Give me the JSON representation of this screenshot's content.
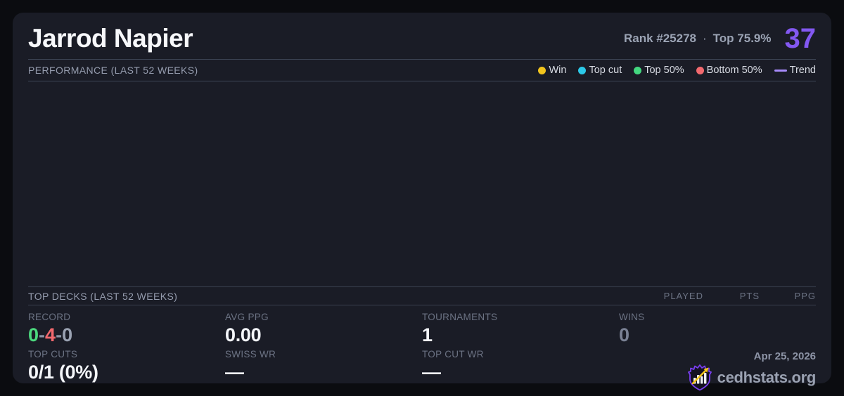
{
  "header": {
    "player_name": "Jarrod Napier",
    "rank": "Rank #25278",
    "separator": "·",
    "percentile": "Top 75.9%",
    "score": "37"
  },
  "colors": {
    "accent_purple": "#8358f1",
    "win_yellow": "#f2c41d",
    "top_cut_cyan": "#2cc9e8",
    "top50_green": "#43d77f",
    "bottom50_red": "#f2696e",
    "trend_purple": "#a78bfa",
    "logo_border_purple": "#7a3ff2",
    "logo_arrow_gold": "#f5c71b"
  },
  "performance": {
    "title": "PERFORMANCE (LAST 52 WEEKS)",
    "legend": [
      {
        "label": "Win",
        "swatch": "dot",
        "color": "#f2c41d"
      },
      {
        "label": "Top cut",
        "swatch": "dot",
        "color": "#2cc9e8"
      },
      {
        "label": "Top 50%",
        "swatch": "dot",
        "color": "#43d77f"
      },
      {
        "label": "Bottom 50%",
        "swatch": "dot",
        "color": "#f2696e"
      },
      {
        "label": "Trend",
        "swatch": "line",
        "color": "#a78bfa"
      }
    ],
    "chart_points": []
  },
  "top_decks": {
    "title": "TOP DECKS (LAST 52 WEEKS)",
    "columns": [
      "PLAYED",
      "PTS",
      "PPG"
    ],
    "rows": []
  },
  "stats": {
    "record": {
      "label": "RECORD",
      "parts": [
        {
          "text": "0",
          "color": "#4cd97e"
        },
        {
          "text": "-",
          "color": "#8b93a4"
        },
        {
          "text": "4",
          "color": "#f2696e"
        },
        {
          "text": "-",
          "color": "#8b93a4"
        },
        {
          "text": "0",
          "color": "#9aa2b2"
        }
      ]
    },
    "avg_ppg": {
      "label": "AVG PPG",
      "value": "0.00"
    },
    "tournaments": {
      "label": "TOURNAMENTS",
      "value": "1"
    },
    "wins": {
      "label": "WINS",
      "value": "0"
    },
    "top_cuts": {
      "label": "TOP CUTS",
      "value": "0/1 (0%)"
    },
    "swiss_wr": {
      "label": "SWISS WR",
      "value": "—"
    },
    "top_cut_wr": {
      "label": "TOP CUT WR",
      "value": "—"
    }
  },
  "footer": {
    "date": "Apr 25, 2026",
    "brand": "cedhstats.org"
  }
}
